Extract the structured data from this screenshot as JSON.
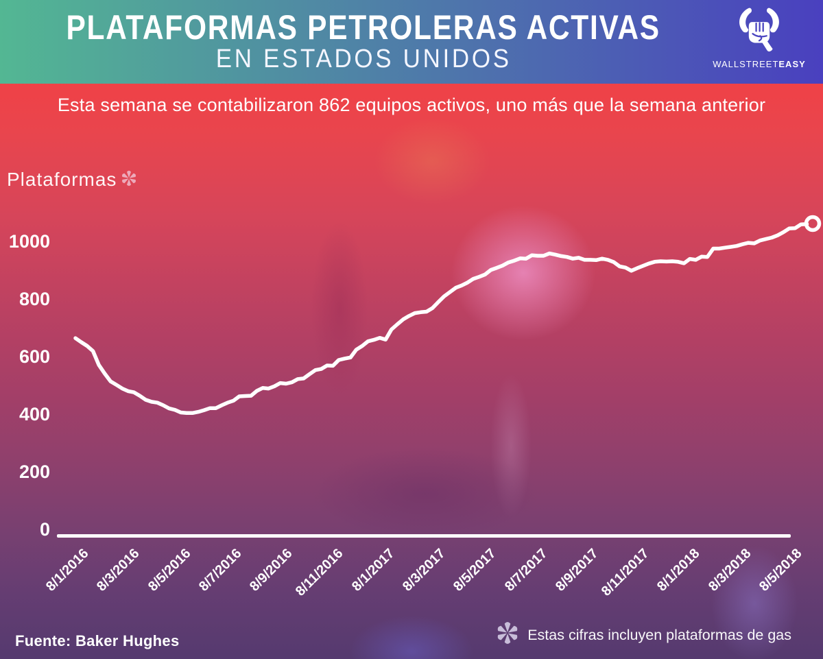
{
  "header": {
    "title": "PLATAFORMAS PETROLERAS ACTIVAS",
    "subtitle": "EN ESTADOS UNIDOS",
    "brand": {
      "logo_icon": "bull-horns-fist-icon",
      "name_regular": "WALLSTREET",
      "name_bold": "EASY"
    }
  },
  "banner": {
    "text": "Esta semana se contabilizaron 862 equipos activos, uno más que la semana anterior"
  },
  "chart": {
    "axis_label": "Plataformas",
    "axis_label_marker": "asterisk-icon"
  },
  "footer": {
    "source": "Fuente: Baker Hughes",
    "note_icon": "asterisk-icon",
    "note": "Estas cifras incluyen plataformas de gas"
  },
  "colors": {
    "header_gradient_left": "#53b793",
    "header_gradient_right": "#4a40bf",
    "line_color": "#ffffff",
    "asterisk_pink": "#edaabb",
    "asterisk_lavender": "#c8bdd9"
  },
  "chart_data": {
    "type": "line",
    "title": "Plataformas petroleras activas en Estados Unidos",
    "ylabel": "Plataformas",
    "ylim": [
      0,
      1100
    ],
    "yticks": [
      1000,
      800,
      600,
      400,
      200,
      0
    ],
    "xticks": [
      "8/1/2016",
      "8/3/2016",
      "8/5/2016",
      "8/7/2016",
      "8/9/2016",
      "8/11/2016",
      "8/1/2017",
      "8/3/2017",
      "8/5/2017",
      "8/7/2017",
      "8/9/2017",
      "8/11/2017",
      "8/1/2018",
      "8/3/2018",
      "8/5/2018"
    ],
    "frequency": "weekly",
    "grid": false,
    "legend": false,
    "end_marker": "open-circle",
    "end_value": 1062,
    "series": [
      {
        "name": "Plataformas activas (incluye gas)",
        "values": [
          664,
          650,
          637,
          619,
          571,
          541,
          514,
          502,
          489,
          480,
          476,
          464,
          450,
          443,
          440,
          431,
          420,
          415,
          406,
          404,
          404,
          408,
          414,
          421,
          421,
          431,
          440,
          447,
          462,
          463,
          464,
          481,
          491,
          489,
          497,
          508,
          506,
          511,
          522,
          524,
          539,
          553,
          557,
          569,
          568,
          588,
          593,
          597,
          624,
          637,
          653,
          658,
          665,
          659,
          694,
          712,
          729,
          741,
          751,
          754,
          756,
          768,
          789,
          809,
          824,
          839,
          847,
          857,
          870,
          877,
          885,
          901,
          908,
          916,
          927,
          933,
          941,
          940,
          952,
          950,
          950,
          958,
          954,
          949,
          946,
          940,
          943,
          936,
          936,
          935,
          940,
          936,
          928,
          913,
          909,
          898,
          907,
          915,
          923,
          929,
          931,
          930,
          931,
          929,
          924,
          939,
          936,
          947,
          946,
          975,
          975,
          978,
          981,
          984,
          990,
          995,
          993,
          1003,
          1008,
          1013,
          1021,
          1032,
          1045,
          1046,
          1059,
          1060,
          1062
        ]
      }
    ]
  }
}
